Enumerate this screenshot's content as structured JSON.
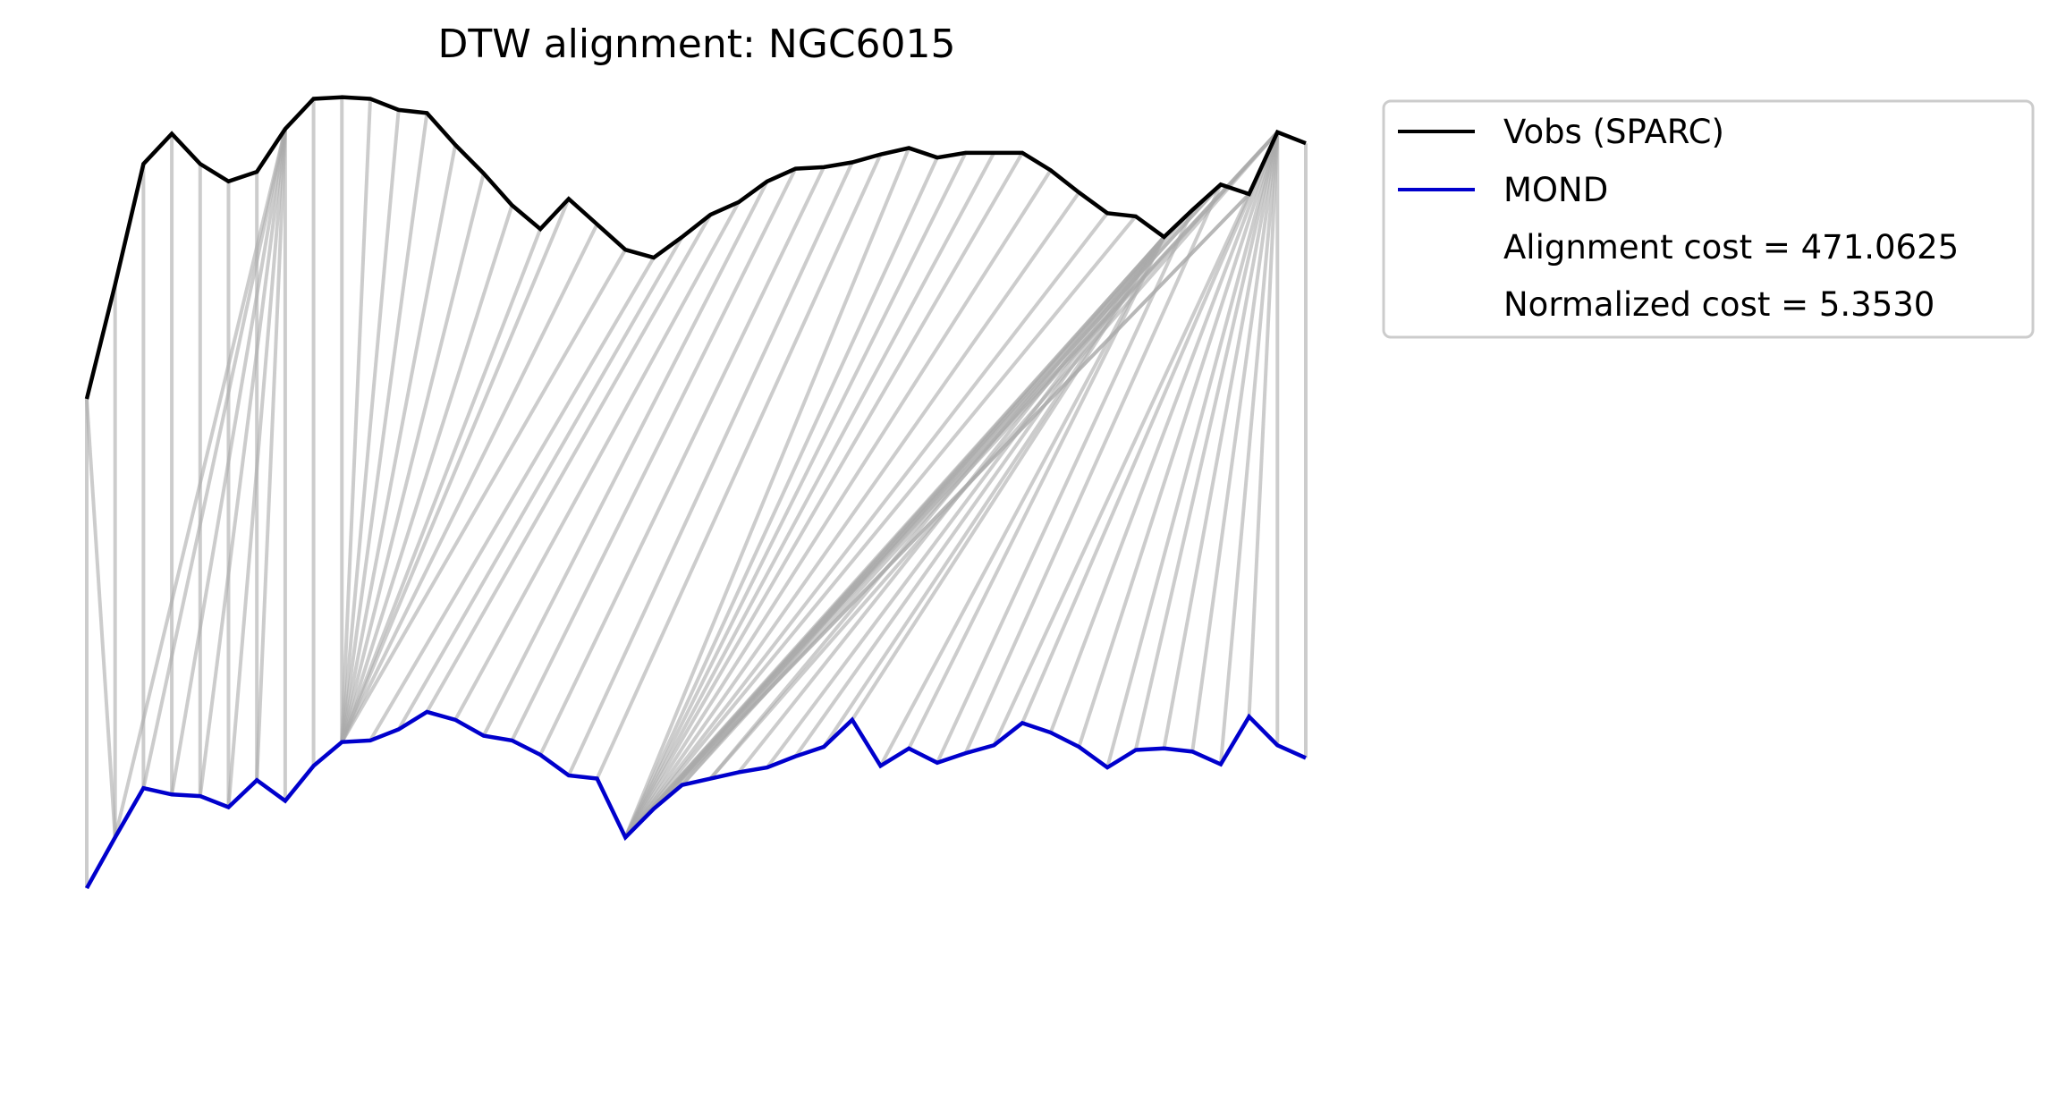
{
  "chart_data": {
    "type": "line",
    "title": "DTW alignment: NGC6015",
    "xlabel": "",
    "ylabel": "",
    "grid": false,
    "axes_visible": false,
    "legend_placement": "outside-top-right",
    "colors": {
      "vobs": "#000000",
      "mond": "#0000cc",
      "connector": "#aaaaaa"
    },
    "legend": [
      {
        "label": "Vobs (SPARC)",
        "series": "vobs"
      },
      {
        "label": "MOND",
        "series": "mond"
      },
      {
        "label": "Alignment cost = 471.0625",
        "series": ""
      },
      {
        "label": "Normalized cost = 5.3530",
        "series": ""
      }
    ],
    "x": [
      0,
      1,
      2,
      3,
      4,
      5,
      6,
      7,
      8,
      9,
      10,
      11,
      12,
      13,
      14,
      15,
      16,
      17,
      18,
      19,
      20,
      21,
      22,
      23,
      24,
      25,
      26,
      27,
      28,
      29,
      30,
      31,
      32,
      33,
      34,
      35,
      36,
      37,
      38,
      39,
      40,
      41,
      42,
      43
    ],
    "ylim": [
      -230,
      350
    ],
    "series": [
      {
        "key": "vobs",
        "values": [
          172,
          244,
          320,
          339,
          320,
          309,
          315,
          342,
          361,
          362,
          361,
          354,
          352,
          332,
          314,
          294,
          279,
          298,
          282,
          266,
          261,
          274,
          288,
          296,
          309,
          317,
          318,
          321,
          326,
          330,
          324,
          327,
          327,
          327,
          316,
          302,
          289,
          287,
          274,
          291,
          307,
          301,
          340,
          333
        ]
      },
      {
        "key": "mond",
        "values": [
          -136,
          -104,
          -73,
          -77,
          -78,
          -85,
          -68,
          -81,
          -59,
          -44,
          -43,
          -36,
          -25,
          -30,
          -40,
          -43,
          -52,
          -65,
          -67,
          -104,
          -86,
          -71,
          -67,
          -63,
          -60,
          -53,
          -47,
          -30,
          -59,
          -48,
          -57,
          -51,
          -46,
          -32,
          -38,
          -47,
          -60,
          -49,
          -48,
          -50,
          -58,
          -28,
          -46,
          -54
        ]
      }
    ],
    "alignment_path": [
      [
        0,
        0
      ],
      [
        0,
        1
      ],
      [
        1,
        1
      ],
      [
        2,
        2
      ],
      [
        3,
        3
      ],
      [
        4,
        4
      ],
      [
        5,
        5
      ],
      [
        6,
        6
      ],
      [
        7,
        7
      ],
      [
        7,
        1
      ],
      [
        7,
        2
      ],
      [
        7,
        3
      ],
      [
        7,
        4
      ],
      [
        7,
        5
      ],
      [
        7,
        6
      ],
      [
        8,
        8
      ],
      [
        9,
        9
      ],
      [
        10,
        9
      ],
      [
        11,
        9
      ],
      [
        12,
        9
      ],
      [
        13,
        9
      ],
      [
        14,
        9
      ],
      [
        15,
        9
      ],
      [
        16,
        9
      ],
      [
        17,
        9
      ],
      [
        18,
        9
      ],
      [
        19,
        9
      ],
      [
        20,
        10
      ],
      [
        21,
        11
      ],
      [
        22,
        12
      ],
      [
        23,
        13
      ],
      [
        24,
        14
      ],
      [
        25,
        15
      ],
      [
        26,
        16
      ],
      [
        27,
        17
      ],
      [
        28,
        18
      ],
      [
        29,
        19
      ],
      [
        30,
        19
      ],
      [
        31,
        19
      ],
      [
        32,
        19
      ],
      [
        33,
        19
      ],
      [
        34,
        19
      ],
      [
        35,
        19
      ],
      [
        36,
        19
      ],
      [
        37,
        19
      ],
      [
        38,
        20
      ],
      [
        38,
        21
      ],
      [
        38,
        22
      ],
      [
        38,
        23
      ],
      [
        38,
        24
      ],
      [
        38,
        25
      ],
      [
        38,
        26
      ],
      [
        38,
        27
      ],
      [
        38,
        28
      ],
      [
        38,
        29
      ],
      [
        39,
        30
      ],
      [
        40,
        31
      ],
      [
        41,
        32
      ],
      [
        42,
        33
      ],
      [
        42,
        34
      ],
      [
        42,
        35
      ],
      [
        42,
        36
      ],
      [
        42,
        37
      ],
      [
        42,
        38
      ],
      [
        42,
        39
      ],
      [
        42,
        40
      ],
      [
        42,
        41
      ],
      [
        42,
        42
      ],
      [
        43,
        43
      ],
      [
        42,
        19
      ],
      [
        41,
        19
      ],
      [
        40,
        19
      ],
      [
        39,
        19
      ],
      [
        38,
        19
      ],
      [
        42,
        20
      ],
      [
        42,
        21
      ],
      [
        42,
        22
      ],
      [
        40,
        20
      ],
      [
        41,
        20
      ]
    ]
  }
}
